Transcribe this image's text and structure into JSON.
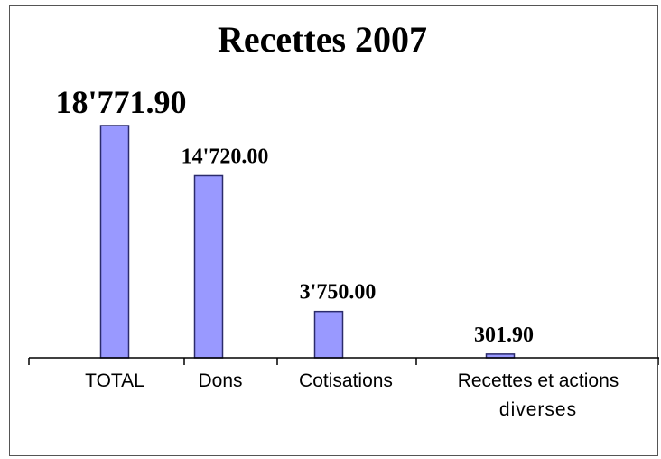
{
  "chart_data": {
    "type": "bar",
    "title": "Recettes 2007",
    "categories": [
      "TOTAL",
      "Dons",
      "Cotisations",
      "Recettes et actions diverses"
    ],
    "values": [
      18771.9,
      14720.0,
      3750.0,
      301.9
    ],
    "data_labels": [
      "18'771.90",
      "14'720.00",
      "3'750.00",
      "301.90"
    ],
    "xlabel": "",
    "ylabel": "",
    "ylim": [
      0,
      18771.9
    ],
    "grid": false,
    "legend": "none",
    "colors": {
      "bar_fill": "#9999ff",
      "bar_stroke": "#2b2b6b",
      "axis": "#000000"
    }
  }
}
